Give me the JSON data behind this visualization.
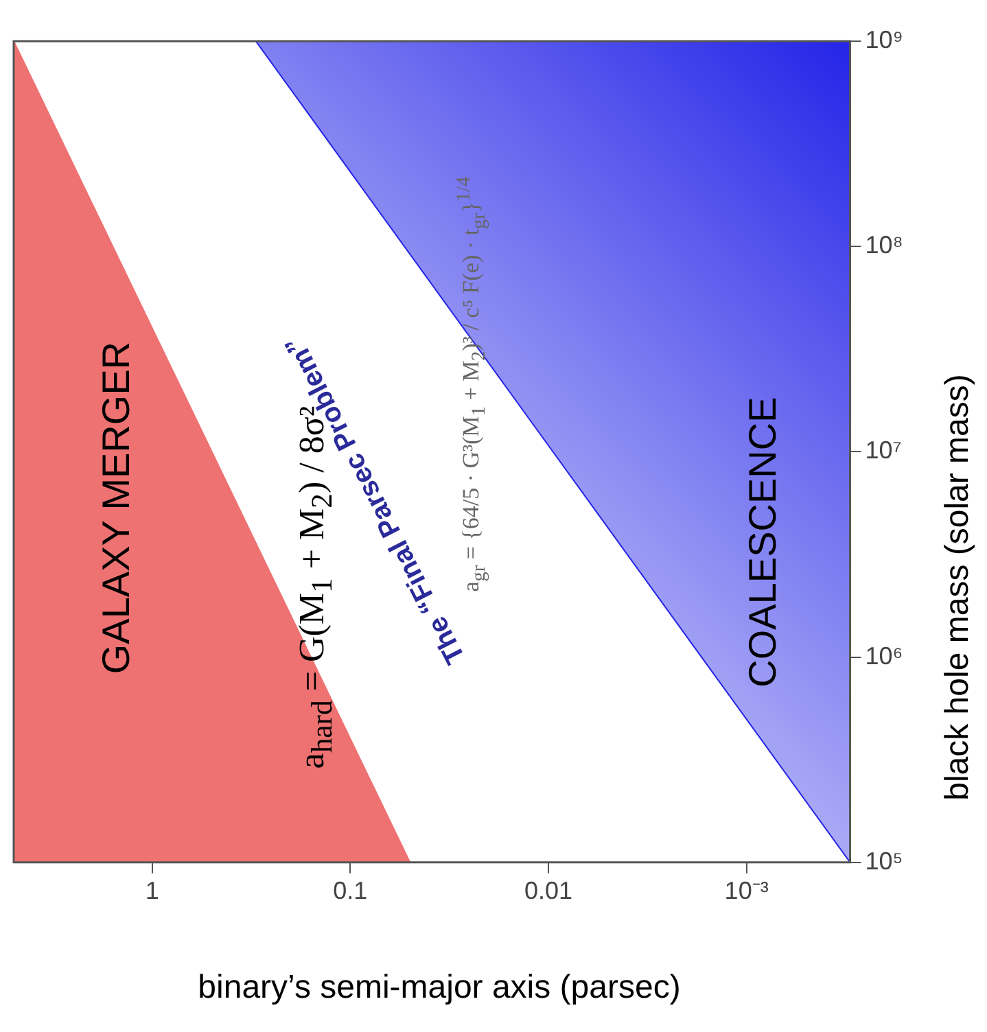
{
  "chart_data": {
    "type": "area",
    "xlabel": "binary’s semi-major axis (parsec)",
    "ylabel": "black hole mass (solar mass)",
    "log": "xy",
    "legend": false,
    "grid": false,
    "xlim": [
      5,
      0.0003
    ],
    "xticks": [
      1,
      0.1,
      0.01,
      {
        "value": 0.001,
        "label": "10⁻³"
      }
    ],
    "ylim": [
      100000,
      1000000000
    ],
    "yticks": [
      {
        "value": 100000,
        "label": "10⁵"
      },
      {
        "value": 1000000,
        "label": "10⁶"
      },
      {
        "value": 10000000,
        "label": "10⁷"
      },
      {
        "value": 100000000,
        "label": "10⁸"
      },
      {
        "value": 1000000000,
        "label": "10⁹"
      }
    ],
    "series": [
      {
        "color": "#ee7272",
        "x": [
          5,
          0.05
        ],
        "values": [
          1000000000,
          100000
        ]
      },
      {
        "color": "#2424e8",
        "x": [
          0.3,
          0.0003
        ],
        "values": [
          1000000000,
          100000
        ]
      }
    ],
    "annotations": [
      "GALAXY MERGER",
      "a$_{hard}$ = G(M$_{1}$ + M$_{2}$) / 8σ²",
      "The “Final Parsec Problem”",
      "a$_{gr}$ = {64/5 · G³(M$_{1}$ + M$_{2}$)³ / c⁵ F(e) · t$_{gr}$}$^{1/4}$",
      "COALESCENCE"
    ]
  }
}
